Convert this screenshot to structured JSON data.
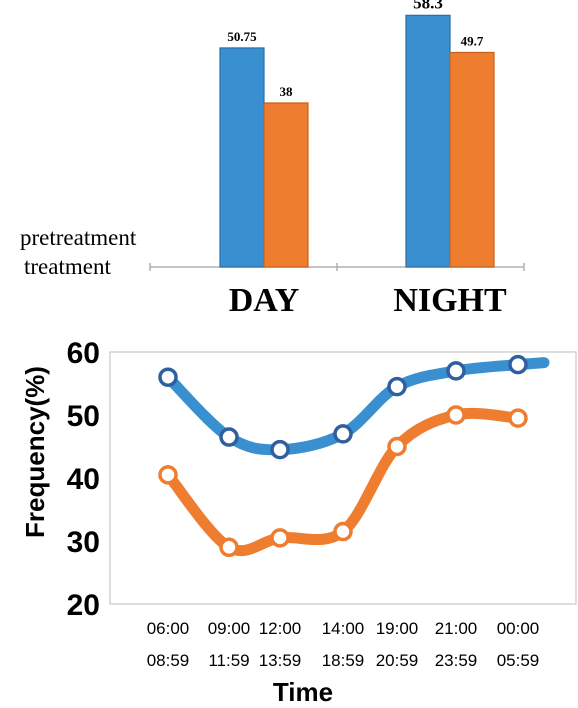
{
  "colors": {
    "series1": "#3a8fd0",
    "series2": "#ee7d30",
    "series1_stroke": "#2a6fa8",
    "series2_stroke": "#c8601c",
    "axis": "#888888",
    "text": "#000000",
    "marker_ring": "#2f5f9e"
  },
  "chart_data": [
    {
      "type": "bar",
      "categories": [
        "DAY",
        "NIGHT"
      ],
      "series": [
        {
          "name": "pretreatment",
          "values": [
            50.75,
            58.3
          ],
          "labels": [
            "50.75",
            "58.3"
          ]
        },
        {
          "name": "treatment",
          "values": [
            38,
            49.7
          ],
          "labels": [
            "38",
            "49.7"
          ]
        }
      ],
      "ylim": [
        0,
        60
      ],
      "grid": false,
      "legend": "left"
    },
    {
      "type": "line",
      "x": [
        "06:00 08:59",
        "09:00 11:59",
        "12:00 13:59",
        "14:00 18:59",
        "19:00 20:59",
        "21:00 23:59",
        "00:00 05:59"
      ],
      "x_top": [
        "06:00",
        "09:00",
        "12:00",
        "14:00",
        "19:00",
        "21:00",
        "00:00"
      ],
      "x_bottom": [
        "08:59",
        "11:59",
        "13:59",
        "18:59",
        "20:59",
        "23:59",
        "05:59"
      ],
      "series": [
        {
          "values": [
            56,
            46.5,
            44.5,
            47,
            54.5,
            57,
            58
          ]
        },
        {
          "values": [
            40.5,
            29,
            30.5,
            31.5,
            45,
            50,
            49.5
          ]
        }
      ],
      "xlabel": "Time",
      "ylabel": "Frequency(%)",
      "yticks": [
        "20",
        "30",
        "40",
        "50",
        "60"
      ],
      "ylim": [
        20,
        60
      ],
      "grid": false
    }
  ]
}
